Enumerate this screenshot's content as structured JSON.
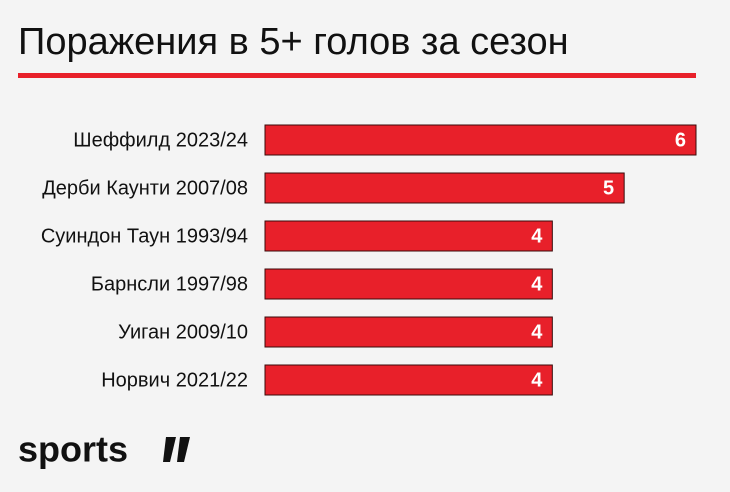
{
  "chart_data": {
    "type": "bar",
    "orientation": "horizontal",
    "title": "Поражения в 5+ голов за сезон",
    "categories": [
      "Шеффилд 2023/24",
      "Дерби Каунти 2007/08",
      "Суиндон Таун 1993/94",
      "Барнсли 1997/98",
      "Уиган 2009/10",
      "Норвич 2021/22"
    ],
    "values": [
      6,
      5,
      4,
      4,
      4,
      4
    ],
    "color": "#e8202a",
    "xlim": [
      0,
      6
    ]
  },
  "logo": "sports"
}
